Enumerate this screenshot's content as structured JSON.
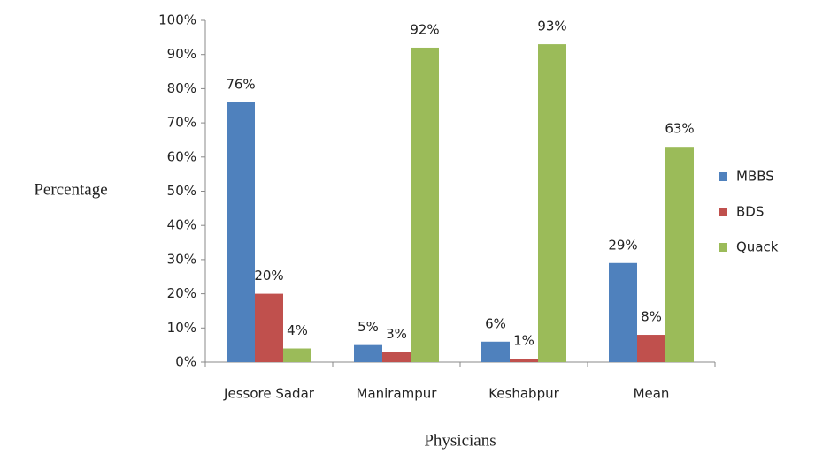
{
  "chart_data": {
    "type": "bar",
    "xlabel": "Physicians",
    "ylabel": "Percentage",
    "categories": [
      "Jessore Sadar",
      "Manirampur",
      "Keshabpur",
      "Mean"
    ],
    "series": [
      {
        "name": "MBBS",
        "color": "#4f81bd",
        "values": [
          76,
          5,
          6,
          29
        ],
        "value_labels": [
          "76%",
          "5%",
          "6%",
          "29%"
        ]
      },
      {
        "name": "BDS",
        "color": "#c0504d",
        "values": [
          20,
          3,
          1,
          8
        ],
        "value_labels": [
          "20%",
          "3%",
          "1%",
          "8%"
        ]
      },
      {
        "name": "Quack",
        "color": "#9bbb59",
        "values": [
          4,
          92,
          93,
          63
        ],
        "value_labels": [
          "4%",
          "92%",
          "93%",
          "63%"
        ]
      }
    ],
    "ylim": [
      0,
      100
    ],
    "yticks": [
      {
        "value": 0,
        "label": "0%"
      },
      {
        "value": 10,
        "label": "10%"
      },
      {
        "value": 20,
        "label": "20%"
      },
      {
        "value": 30,
        "label": "30%"
      },
      {
        "value": 40,
        "label": "40%"
      },
      {
        "value": 50,
        "label": "50%"
      },
      {
        "value": 60,
        "label": "60%"
      },
      {
        "value": 70,
        "label": "70%"
      },
      {
        "value": 80,
        "label": "80%"
      },
      {
        "value": 90,
        "label": "90%"
      },
      {
        "value": 100,
        "label": "100%"
      }
    ],
    "grid": false,
    "legend": "right"
  }
}
